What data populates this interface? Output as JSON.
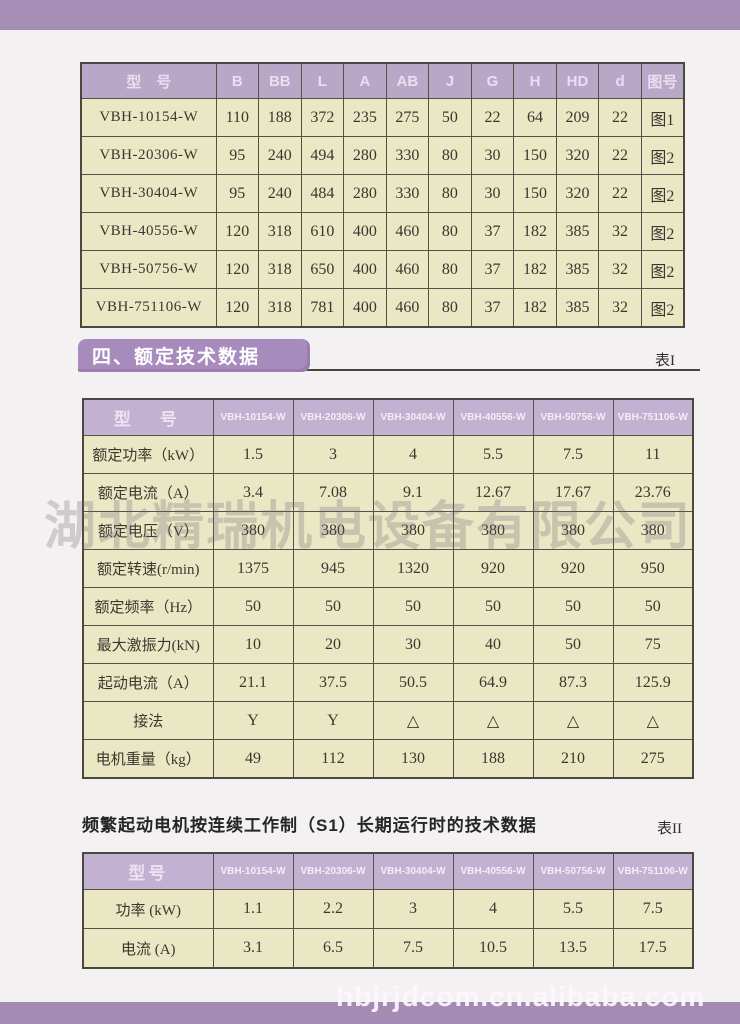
{
  "page": {
    "watermark_center": "湖北精瑞机电设备有限公司",
    "watermark_bottom": "hbjrjdcom.cn.alibaba.com"
  },
  "colors": {
    "accent_purple": "#a78eb6",
    "table_header_purple": "#b8a7c6",
    "cell_beige": "#eae7c4"
  },
  "dimension_table": {
    "headers": [
      "型　号",
      "B",
      "BB",
      "L",
      "A",
      "AB",
      "J",
      "G",
      "H",
      "HD",
      "d",
      "图号"
    ],
    "rows": [
      [
        "VBH-10154-W",
        "110",
        "188",
        "372",
        "235",
        "275",
        "50",
        "22",
        "64",
        "209",
        "22",
        "图1"
      ],
      [
        "VBH-20306-W",
        "95",
        "240",
        "494",
        "280",
        "330",
        "80",
        "30",
        "150",
        "320",
        "22",
        "图2"
      ],
      [
        "VBH-30404-W",
        "95",
        "240",
        "484",
        "280",
        "330",
        "80",
        "30",
        "150",
        "320",
        "22",
        "图2"
      ],
      [
        "VBH-40556-W",
        "120",
        "318",
        "610",
        "400",
        "460",
        "80",
        "37",
        "182",
        "385",
        "32",
        "图2"
      ],
      [
        "VBH-50756-W",
        "120",
        "318",
        "650",
        "400",
        "460",
        "80",
        "37",
        "182",
        "385",
        "32",
        "图2"
      ],
      [
        "VBH-751106-W",
        "120",
        "318",
        "781",
        "400",
        "460",
        "80",
        "37",
        "182",
        "385",
        "32",
        "图2"
      ]
    ]
  },
  "section": {
    "title": "四、额定技术数据",
    "table_label": "表I"
  },
  "rated_table": {
    "corner": "型　号",
    "models": [
      "VBH-10154-W",
      "VBH-20306-W",
      "VBH-30404-W",
      "VBH-40556-W",
      "VBH-50756-W",
      "VBH-751106-W"
    ],
    "rows": [
      {
        "label": "额定功率（kW）",
        "values": [
          "1.5",
          "3",
          "4",
          "5.5",
          "7.5",
          "11"
        ]
      },
      {
        "label": "额定电流（A）",
        "values": [
          "3.4",
          "7.08",
          "9.1",
          "12.67",
          "17.67",
          "23.76"
        ]
      },
      {
        "label": "额定电压（V）",
        "values": [
          "380",
          "380",
          "380",
          "380",
          "380",
          "380"
        ]
      },
      {
        "label": "额定转速(r/min)",
        "values": [
          "1375",
          "945",
          "1320",
          "920",
          "920",
          "950"
        ]
      },
      {
        "label": "额定频率（Hz）",
        "values": [
          "50",
          "50",
          "50",
          "50",
          "50",
          "50"
        ]
      },
      {
        "label": "最大激振力(kN)",
        "values": [
          "10",
          "20",
          "30",
          "40",
          "50",
          "75"
        ]
      },
      {
        "label": "起动电流（A）",
        "values": [
          "21.1",
          "37.5",
          "50.5",
          "64.9",
          "87.3",
          "125.9"
        ]
      },
      {
        "label": "接法",
        "values": [
          "Y",
          "Y",
          "△",
          "△",
          "△",
          "△"
        ]
      },
      {
        "label": "电机重量（kg）",
        "values": [
          "49",
          "112",
          "130",
          "188",
          "210",
          "275"
        ]
      }
    ]
  },
  "s1_section": {
    "title": "频繁起动电机按连续工作制（S1）长期运行时的技术数据",
    "table_label": "表II"
  },
  "s1_table": {
    "corner": "型号",
    "models": [
      "VBH-10154-W",
      "VBH-20306-W",
      "VBH-30404-W",
      "VBH-40556-W",
      "VBH-50756-W",
      "VBH-751106-W"
    ],
    "rows": [
      {
        "label": "功率 (kW)",
        "values": [
          "1.1",
          "2.2",
          "3",
          "4",
          "5.5",
          "7.5"
        ]
      },
      {
        "label": "电流 (A)",
        "values": [
          "3.1",
          "6.5",
          "7.5",
          "10.5",
          "13.5",
          "17.5"
        ]
      }
    ]
  }
}
